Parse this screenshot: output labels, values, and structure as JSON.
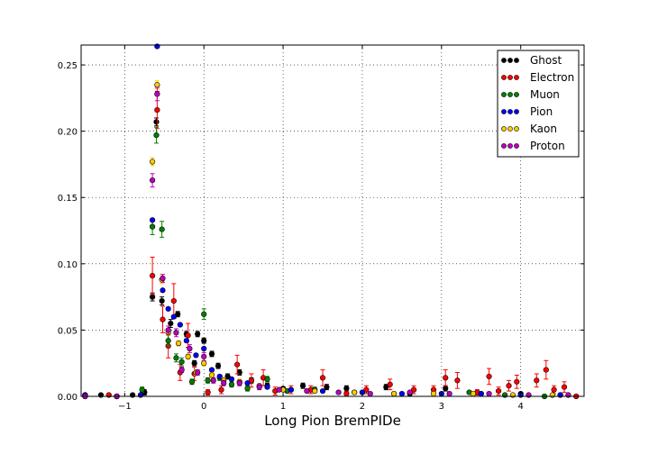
{
  "chart_data": {
    "type": "scatter",
    "title": "",
    "xlabel": "Long Pion BremPIDe",
    "ylabel": "",
    "xlim": [
      -1.55,
      4.8
    ],
    "ylim": [
      0.0,
      0.265
    ],
    "x_ticks": [
      -1,
      0,
      1,
      2,
      3,
      4
    ],
    "x_tick_labels": [
      "−1",
      "0",
      "1",
      "2",
      "3",
      "4"
    ],
    "y_ticks": [
      0.0,
      0.05,
      0.1,
      0.15,
      0.2,
      0.25
    ],
    "y_tick_labels": [
      "0.00",
      "0.05",
      "0.10",
      "0.15",
      "0.20",
      "0.25"
    ],
    "grid": true,
    "legend_position": "top-right",
    "error_bars": true,
    "series": [
      {
        "name": "Ghost",
        "color": "#000000",
        "points": [
          [
            -1.5,
            0.001,
            0.001
          ],
          [
            -1.3,
            0.001,
            0.001
          ],
          [
            -1.1,
            0.0,
            0.0
          ],
          [
            -0.9,
            0.001,
            0.001
          ],
          [
            -0.75,
            0.003,
            0.002
          ],
          [
            -0.65,
            0.075,
            0.003
          ],
          [
            -0.6,
            0.207,
            0.003
          ],
          [
            -0.53,
            0.072,
            0.003
          ],
          [
            -0.42,
            0.055,
            0.003
          ],
          [
            -0.33,
            0.062,
            0.002
          ],
          [
            -0.22,
            0.047,
            0.002
          ],
          [
            -0.12,
            0.025,
            0.002
          ],
          [
            -0.08,
            0.047,
            0.002
          ],
          [
            0.0,
            0.042,
            0.002
          ],
          [
            0.1,
            0.032,
            0.002
          ],
          [
            0.18,
            0.023,
            0.002
          ],
          [
            0.3,
            0.015,
            0.002
          ],
          [
            0.45,
            0.018,
            0.002
          ],
          [
            0.6,
            0.012,
            0.002
          ],
          [
            0.8,
            0.008,
            0.002
          ],
          [
            1.0,
            0.006,
            0.001
          ],
          [
            1.25,
            0.008,
            0.002
          ],
          [
            1.55,
            0.007,
            0.002
          ],
          [
            1.8,
            0.006,
            0.002
          ],
          [
            2.0,
            0.003,
            0.001
          ],
          [
            2.3,
            0.007,
            0.002
          ],
          [
            2.6,
            0.002,
            0.001
          ],
          [
            3.05,
            0.006,
            0.002
          ],
          [
            3.5,
            0.002,
            0.001
          ],
          [
            4.0,
            0.002,
            0.001
          ],
          [
            4.5,
            0.001,
            0.001
          ]
        ]
      },
      {
        "name": "Electron",
        "color": "#ff0000",
        "points": [
          [
            -1.5,
            0.001,
            0.001
          ],
          [
            -1.2,
            0.001,
            0.001
          ],
          [
            -0.65,
            0.091,
            0.014
          ],
          [
            -0.59,
            0.216,
            0.014
          ],
          [
            -0.52,
            0.058,
            0.01
          ],
          [
            -0.45,
            0.038,
            0.009
          ],
          [
            -0.38,
            0.072,
            0.013
          ],
          [
            -0.3,
            0.018,
            0.006
          ],
          [
            -0.2,
            0.046,
            0.009
          ],
          [
            -0.12,
            0.017,
            0.005
          ],
          [
            0.05,
            0.003,
            0.002
          ],
          [
            0.22,
            0.005,
            0.003
          ],
          [
            0.42,
            0.024,
            0.007
          ],
          [
            0.6,
            0.012,
            0.005
          ],
          [
            0.75,
            0.014,
            0.006
          ],
          [
            0.9,
            0.004,
            0.003
          ],
          [
            1.1,
            0.005,
            0.003
          ],
          [
            1.35,
            0.005,
            0.003
          ],
          [
            1.5,
            0.014,
            0.006
          ],
          [
            1.8,
            0.002,
            0.002
          ],
          [
            2.05,
            0.005,
            0.003
          ],
          [
            2.35,
            0.009,
            0.004
          ],
          [
            2.65,
            0.005,
            0.003
          ],
          [
            2.9,
            0.005,
            0.003
          ],
          [
            3.05,
            0.014,
            0.006
          ],
          [
            3.2,
            0.012,
            0.006
          ],
          [
            3.45,
            0.003,
            0.002
          ],
          [
            3.6,
            0.015,
            0.006
          ],
          [
            3.72,
            0.004,
            0.003
          ],
          [
            3.85,
            0.008,
            0.004
          ],
          [
            3.95,
            0.011,
            0.005
          ],
          [
            4.2,
            0.012,
            0.005
          ],
          [
            4.32,
            0.02,
            0.007
          ],
          [
            4.42,
            0.005,
            0.003
          ],
          [
            4.55,
            0.007,
            0.004
          ],
          [
            4.7,
            0.0,
            0.0
          ]
        ]
      },
      {
        "name": "Muon",
        "color": "#008000",
        "points": [
          [
            -1.5,
            0.0,
            0.0
          ],
          [
            -1.1,
            0.0,
            0.0
          ],
          [
            -0.78,
            0.005,
            0.002
          ],
          [
            -0.65,
            0.128,
            0.006
          ],
          [
            -0.6,
            0.197,
            0.006
          ],
          [
            -0.53,
            0.126,
            0.006
          ],
          [
            -0.45,
            0.042,
            0.004
          ],
          [
            -0.35,
            0.029,
            0.003
          ],
          [
            -0.28,
            0.026,
            0.003
          ],
          [
            -0.15,
            0.011,
            0.002
          ],
          [
            0.0,
            0.062,
            0.004
          ],
          [
            0.05,
            0.012,
            0.002
          ],
          [
            0.2,
            0.014,
            0.002
          ],
          [
            0.35,
            0.009,
            0.002
          ],
          [
            0.55,
            0.006,
            0.002
          ],
          [
            0.8,
            0.013,
            0.002
          ],
          [
            1.05,
            0.004,
            0.001
          ],
          [
            1.4,
            0.005,
            0.002
          ],
          [
            1.9,
            0.003,
            0.001
          ],
          [
            2.4,
            0.002,
            0.001
          ],
          [
            3.35,
            0.003,
            0.001
          ],
          [
            3.8,
            0.001,
            0.001
          ],
          [
            4.3,
            0.0,
            0.0
          ]
        ]
      },
      {
        "name": "Pion",
        "color": "#0000ff",
        "points": [
          [
            -1.5,
            0.001,
            0.0
          ],
          [
            -1.1,
            0.0,
            0.0
          ],
          [
            -0.8,
            0.001,
            0.0
          ],
          [
            -0.65,
            0.133,
            0.001
          ],
          [
            -0.59,
            0.264,
            0.001
          ],
          [
            -0.52,
            0.08,
            0.001
          ],
          [
            -0.45,
            0.066,
            0.001
          ],
          [
            -0.38,
            0.06,
            0.001
          ],
          [
            -0.3,
            0.054,
            0.001
          ],
          [
            -0.22,
            0.042,
            0.001
          ],
          [
            -0.1,
            0.031,
            0.001
          ],
          [
            0.0,
            0.036,
            0.001
          ],
          [
            0.1,
            0.02,
            0.001
          ],
          [
            0.2,
            0.015,
            0.001
          ],
          [
            0.35,
            0.013,
            0.001
          ],
          [
            0.55,
            0.01,
            0.001
          ],
          [
            0.8,
            0.007,
            0.001
          ],
          [
            1.1,
            0.005,
            0.001
          ],
          [
            1.5,
            0.004,
            0.001
          ],
          [
            2.0,
            0.003,
            0.001
          ],
          [
            2.5,
            0.002,
            0.001
          ],
          [
            3.0,
            0.002,
            0.001
          ],
          [
            3.5,
            0.002,
            0.001
          ],
          [
            4.0,
            0.001,
            0.0
          ],
          [
            4.5,
            0.001,
            0.0
          ]
        ]
      },
      {
        "name": "Kaon",
        "color": "#ffcc00",
        "points": [
          [
            -1.5,
            0.0,
            0.0
          ],
          [
            -1.1,
            0.0,
            0.0
          ],
          [
            -0.65,
            0.177,
            0.003
          ],
          [
            -0.59,
            0.235,
            0.003
          ],
          [
            -0.53,
            0.088,
            0.003
          ],
          [
            -0.45,
            0.048,
            0.002
          ],
          [
            -0.32,
            0.04,
            0.002
          ],
          [
            -0.2,
            0.03,
            0.002
          ],
          [
            -0.1,
            0.018,
            0.002
          ],
          [
            0.0,
            0.025,
            0.002
          ],
          [
            0.1,
            0.016,
            0.002
          ],
          [
            0.25,
            0.012,
            0.002
          ],
          [
            0.45,
            0.011,
            0.002
          ],
          [
            0.7,
            0.008,
            0.001
          ],
          [
            1.0,
            0.005,
            0.001
          ],
          [
            1.4,
            0.004,
            0.001
          ],
          [
            1.9,
            0.003,
            0.001
          ],
          [
            2.4,
            0.002,
            0.001
          ],
          [
            2.9,
            0.002,
            0.001
          ],
          [
            3.4,
            0.002,
            0.001
          ],
          [
            3.9,
            0.001,
            0.001
          ],
          [
            4.4,
            0.001,
            0.001
          ]
        ]
      },
      {
        "name": "Proton",
        "color": "#bf00bf",
        "points": [
          [
            -1.5,
            0.0,
            0.0
          ],
          [
            -1.1,
            0.0,
            0.0
          ],
          [
            -0.65,
            0.163,
            0.005
          ],
          [
            -0.59,
            0.228,
            0.005
          ],
          [
            -0.52,
            0.089,
            0.003
          ],
          [
            -0.45,
            0.05,
            0.003
          ],
          [
            -0.35,
            0.048,
            0.003
          ],
          [
            -0.28,
            0.02,
            0.002
          ],
          [
            -0.18,
            0.036,
            0.003
          ],
          [
            -0.08,
            0.018,
            0.002
          ],
          [
            0.0,
            0.03,
            0.003
          ],
          [
            0.12,
            0.012,
            0.002
          ],
          [
            0.25,
            0.01,
            0.002
          ],
          [
            0.45,
            0.01,
            0.002
          ],
          [
            0.7,
            0.007,
            0.002
          ],
          [
            0.95,
            0.005,
            0.001
          ],
          [
            1.3,
            0.004,
            0.001
          ],
          [
            1.7,
            0.003,
            0.001
          ],
          [
            2.1,
            0.002,
            0.001
          ],
          [
            2.6,
            0.003,
            0.001
          ],
          [
            3.1,
            0.002,
            0.001
          ],
          [
            3.6,
            0.002,
            0.001
          ],
          [
            4.1,
            0.001,
            0.001
          ],
          [
            4.6,
            0.001,
            0.001
          ]
        ]
      }
    ]
  }
}
